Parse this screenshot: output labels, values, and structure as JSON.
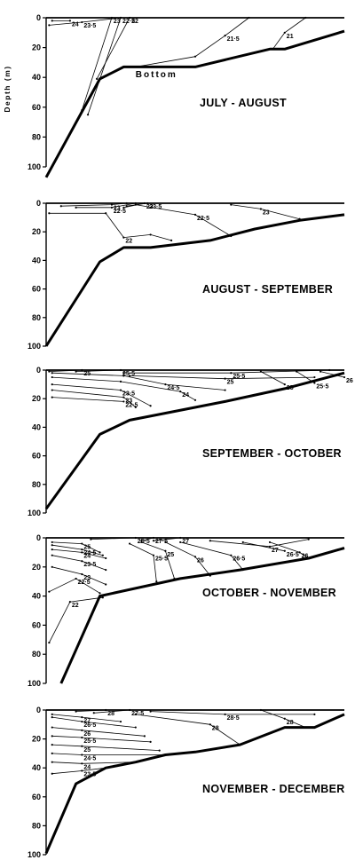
{
  "ylabel": "Depth (m)",
  "chart_data": [
    {
      "type": "line",
      "title": "JULY - AUGUST",
      "ylabel": "Depth (m)",
      "ylim": [
        0,
        100
      ],
      "yticks": [
        0,
        20,
        40,
        60,
        80,
        100
      ],
      "bottom_label": "Bottom",
      "bottom_profile": [
        [
          0,
          107
        ],
        [
          0.18,
          41
        ],
        [
          0.26,
          33
        ],
        [
          0.5,
          33
        ],
        [
          0.75,
          21
        ],
        [
          0.8,
          21
        ],
        [
          1,
          9
        ]
      ],
      "isotherms": [
        {
          "label": "24",
          "points": [
            [
              0.02,
              2
            ],
            [
              0.08,
              2
            ]
          ]
        },
        {
          "label": "23·5",
          "points": [
            [
              0.01,
              5
            ],
            [
              0.12,
              3
            ],
            [
              0.25,
              0
            ]
          ]
        },
        {
          "label": "23",
          "points": [
            [
              0.12,
              62
            ],
            [
              0.22,
              0
            ]
          ]
        },
        {
          "label": "22·5",
          "points": [
            [
              0.14,
              65
            ],
            [
              0.25,
              0
            ]
          ]
        },
        {
          "label": "22",
          "points": [
            [
              0.17,
              41
            ],
            [
              0.28,
              0
            ]
          ]
        },
        {
          "label": "21·5",
          "points": [
            [
              0.3,
              33
            ],
            [
              0.5,
              26
            ],
            [
              0.6,
              12
            ],
            [
              0.68,
              0
            ]
          ]
        },
        {
          "label": "21",
          "points": [
            [
              0.76,
              21
            ],
            [
              0.8,
              10
            ],
            [
              0.87,
              0
            ]
          ]
        }
      ]
    },
    {
      "type": "line",
      "title": "AUGUST - SEPTEMBER",
      "ylabel": "Depth (m)",
      "ylim": [
        0,
        100
      ],
      "yticks": [
        0,
        20,
        40,
        60,
        80,
        100
      ],
      "bottom_profile": [
        [
          0,
          100
        ],
        [
          0.18,
          41
        ],
        [
          0.26,
          31
        ],
        [
          0.35,
          31
        ],
        [
          0.55,
          26
        ],
        [
          0.7,
          18
        ],
        [
          0.85,
          12
        ],
        [
          1,
          8
        ]
      ],
      "isotherms": [
        {
          "label": "23",
          "points": [
            [
              0.05,
              2
            ],
            [
              0.22,
              1
            ],
            [
              0.27,
              0
            ]
          ]
        },
        {
          "label": "22·5",
          "points": [
            [
              0.1,
              3
            ],
            [
              0.22,
              3
            ],
            [
              0.3,
              0
            ]
          ]
        },
        {
          "label": "23",
          "points": [
            [
              0.26,
              3
            ],
            [
              0.33,
              0
            ]
          ]
        },
        {
          "label": "23·5",
          "points": [
            [
              0.27,
              2
            ],
            [
              0.34,
              0
            ]
          ]
        },
        {
          "label": "22·5",
          "points": [
            [
              0.3,
              1
            ],
            [
              0.5,
              8
            ],
            [
              0.62,
              23
            ]
          ]
        },
        {
          "label": "22",
          "points": [
            [
              0.01,
              7
            ],
            [
              0.2,
              7
            ],
            [
              0.26,
              24
            ],
            [
              0.35,
              22
            ],
            [
              0.42,
              26
            ]
          ]
        },
        {
          "label": "23",
          "points": [
            [
              0.62,
              1
            ],
            [
              0.72,
              4
            ],
            [
              0.85,
              11
            ]
          ]
        }
      ]
    },
    {
      "type": "line",
      "title": "SEPTEMBER - OCTOBER",
      "ylabel": "Depth (m)",
      "ylim": [
        0,
        100
      ],
      "yticks": [
        0,
        20,
        40,
        60,
        80,
        100
      ],
      "bottom_profile": [
        [
          0,
          97
        ],
        [
          0.18,
          45
        ],
        [
          0.28,
          35
        ],
        [
          0.33,
          33
        ],
        [
          0.6,
          22
        ],
        [
          0.8,
          13
        ],
        [
          1,
          2
        ]
      ],
      "isotherms": [
        {
          "label": "25",
          "points": [
            [
              0.01,
              1
            ],
            [
              0.12,
              0
            ]
          ]
        },
        {
          "label": "25·5",
          "points": [
            [
              0.1,
              1
            ],
            [
              0.25,
              0
            ]
          ]
        },
        {
          "label": "25·5",
          "points": [
            [
              0.26,
              2
            ],
            [
              0.62,
              2
            ],
            [
              0.95,
              0
            ]
          ]
        },
        {
          "label": "24·5",
          "points": [
            [
              0.02,
              2
            ],
            [
              0.26,
              4
            ],
            [
              0.4,
              10
            ],
            [
              0.6,
              14
            ]
          ]
        },
        {
          "label": "24",
          "points": [
            [
              0.02,
              5
            ],
            [
              0.25,
              8
            ],
            [
              0.45,
              15
            ],
            [
              0.5,
              21
            ]
          ]
        },
        {
          "label": "25",
          "points": [
            [
              0.28,
              4
            ],
            [
              0.6,
              6
            ],
            [
              0.9,
              5
            ]
          ]
        },
        {
          "label": "23·5",
          "points": [
            [
              0.02,
              10
            ],
            [
              0.25,
              14
            ],
            [
              0.35,
              25
            ]
          ]
        },
        {
          "label": "23",
          "points": [
            [
              0.02,
              14
            ],
            [
              0.26,
              19
            ],
            [
              0.3,
              26
            ]
          ]
        },
        {
          "label": "22·5",
          "points": [
            [
              0.02,
              19
            ],
            [
              0.26,
              22
            ]
          ]
        },
        {
          "label": "25",
          "points": [
            [
              0.72,
              1
            ],
            [
              0.8,
              10
            ]
          ]
        },
        {
          "label": "25·5",
          "points": [
            [
              0.84,
              1
            ],
            [
              0.9,
              9
            ]
          ]
        },
        {
          "label": "26",
          "points": [
            [
              0.92,
              1
            ],
            [
              1,
              5
            ]
          ]
        }
      ]
    },
    {
      "type": "line",
      "title": "OCTOBER - NOVEMBER",
      "ylabel": "Depth (m)",
      "ylim": [
        0,
        100
      ],
      "yticks": [
        0,
        20,
        40,
        60,
        80,
        100
      ],
      "bottom_profile": [
        [
          0.05,
          100
        ],
        [
          0.1,
          77
        ],
        [
          0.18,
          40
        ],
        [
          0.45,
          28
        ],
        [
          0.65,
          22
        ],
        [
          0.88,
          14
        ],
        [
          1,
          7
        ]
      ],
      "isotherms": [
        {
          "label": "25·5",
          "points": [
            [
              0.15,
              1
            ],
            [
              0.3,
              0
            ]
          ]
        },
        {
          "label": "27·5",
          "points": [
            [
              0.32,
              2
            ],
            [
              0.36,
              0
            ]
          ]
        },
        {
          "label": "27",
          "points": [
            [
              0.36,
              2
            ],
            [
              0.45,
              0
            ]
          ]
        },
        {
          "label": "25",
          "points": [
            [
              0.02,
              3
            ],
            [
              0.12,
              4
            ],
            [
              0.18,
              10
            ]
          ]
        },
        {
          "label": "24·5",
          "points": [
            [
              0.02,
              5
            ],
            [
              0.12,
              8
            ],
            [
              0.19,
              12
            ]
          ]
        },
        {
          "label": "24",
          "points": [
            [
              0.02,
              8
            ],
            [
              0.12,
              10
            ],
            [
              0.2,
              14
            ]
          ]
        },
        {
          "label": "25",
          "points": [
            [
              0.32,
              3
            ],
            [
              0.4,
              9
            ],
            [
              0.43,
              28
            ]
          ]
        },
        {
          "label": "25·5",
          "points": [
            [
              0.28,
              4
            ],
            [
              0.36,
              12
            ],
            [
              0.37,
              30
            ]
          ]
        },
        {
          "label": "26",
          "points": [
            [
              0.4,
              3
            ],
            [
              0.5,
              13
            ],
            [
              0.55,
              26
            ]
          ]
        },
        {
          "label": "26·5",
          "points": [
            [
              0.45,
              3
            ],
            [
              0.62,
              12
            ],
            [
              0.66,
              22
            ]
          ]
        },
        {
          "label": "27",
          "points": [
            [
              0.55,
              2
            ],
            [
              0.75,
              6
            ],
            [
              0.88,
              1
            ]
          ]
        },
        {
          "label": "26·5",
          "points": [
            [
              0.66,
              3
            ],
            [
              0.8,
              9
            ]
          ]
        },
        {
          "label": "26",
          "points": [
            [
              0.75,
              3
            ],
            [
              0.85,
              10
            ],
            [
              0.88,
              14
            ]
          ]
        },
        {
          "label": "23·5",
          "points": [
            [
              0.02,
              12
            ],
            [
              0.12,
              16
            ],
            [
              0.2,
              22
            ]
          ]
        },
        {
          "label": "23",
          "points": [
            [
              0.02,
              20
            ],
            [
              0.12,
              25
            ],
            [
              0.2,
              32
            ]
          ]
        },
        {
          "label": "22·5",
          "points": [
            [
              0.01,
              37
            ],
            [
              0.1,
              28
            ],
            [
              0.18,
              38
            ]
          ]
        },
        {
          "label": "22",
          "points": [
            [
              0.01,
              72
            ],
            [
              0.08,
              44
            ],
            [
              0.19,
              41
            ]
          ]
        }
      ]
    },
    {
      "type": "line",
      "title": "NOVEMBER - DECEMBER",
      "ylabel": "Depth (m)",
      "ylim": [
        0,
        100
      ],
      "yticks": [
        0,
        20,
        40,
        60,
        80,
        100
      ],
      "bottom_profile": [
        [
          0,
          99
        ],
        [
          0.1,
          51
        ],
        [
          0.2,
          40
        ],
        [
          0.3,
          36
        ],
        [
          0.4,
          31
        ],
        [
          0.5,
          29
        ],
        [
          0.65,
          24
        ],
        [
          0.8,
          12
        ],
        [
          0.9,
          12
        ],
        [
          1,
          3
        ]
      ],
      "isotherms": [
        {
          "label": "28",
          "points": [
            [
              0.1,
              1
            ],
            [
              0.2,
              0
            ]
          ]
        },
        {
          "label": "27·5",
          "points": [
            [
              0.16,
              2
            ],
            [
              0.28,
              0
            ]
          ]
        },
        {
          "label": "27",
          "points": [
            [
              0.02,
              3
            ],
            [
              0.12,
              5
            ],
            [
              0.25,
              8
            ]
          ]
        },
        {
          "label": "26·5",
          "points": [
            [
              0.02,
              5
            ],
            [
              0.12,
              8
            ],
            [
              0.3,
              12
            ]
          ]
        },
        {
          "label": "26",
          "points": [
            [
              0.02,
              12
            ],
            [
              0.12,
              14
            ],
            [
              0.33,
              18
            ]
          ]
        },
        {
          "label": "25·5",
          "points": [
            [
              0.02,
              18
            ],
            [
              0.12,
              19
            ],
            [
              0.35,
              22
            ]
          ]
        },
        {
          "label": "25",
          "points": [
            [
              0.02,
              24
            ],
            [
              0.12,
              25
            ],
            [
              0.38,
              28
            ]
          ]
        },
        {
          "label": "24·5",
          "points": [
            [
              0.02,
              30
            ],
            [
              0.12,
              31
            ],
            [
              0.4,
              31
            ]
          ]
        },
        {
          "label": "24",
          "points": [
            [
              0.02,
              36
            ],
            [
              0.12,
              37
            ],
            [
              0.3,
              36
            ]
          ]
        },
        {
          "label": "23·5",
          "points": [
            [
              0.02,
              44
            ],
            [
              0.12,
              42
            ],
            [
              0.2,
              40
            ]
          ]
        },
        {
          "label": "28",
          "points": [
            [
              0.3,
              3
            ],
            [
              0.55,
              10
            ],
            [
              0.65,
              24
            ]
          ]
        },
        {
          "label": "28·5",
          "points": [
            [
              0.35,
              1
            ],
            [
              0.6,
              3
            ],
            [
              0.9,
              3
            ]
          ]
        },
        {
          "label": "28",
          "points": [
            [
              0.72,
              0
            ],
            [
              0.8,
              6
            ],
            [
              0.87,
              12
            ]
          ]
        }
      ]
    }
  ]
}
